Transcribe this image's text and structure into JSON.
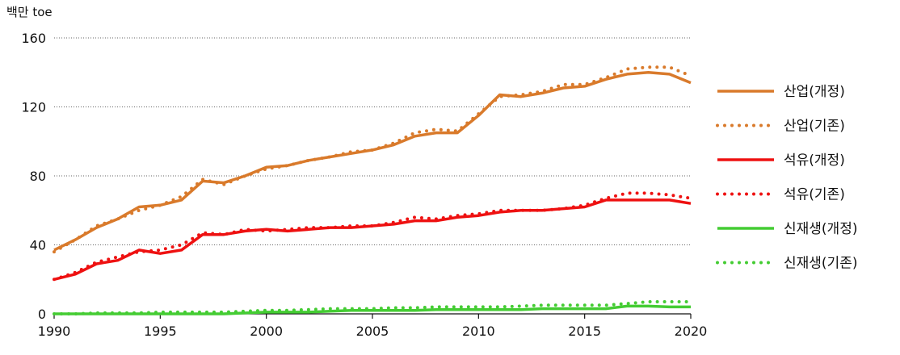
{
  "chart_data": {
    "type": "line",
    "ylabel": "백만 toe",
    "ylim": [
      0,
      160
    ],
    "xlim": [
      1990,
      2020
    ],
    "yticks": [
      "0",
      "40",
      "80",
      "120",
      "160"
    ],
    "xticks": [
      "1990",
      "1995",
      "2000",
      "2005",
      "2010",
      "2015",
      "2020"
    ],
    "grid": "horizontal dotted",
    "legend_position": "right",
    "x": [
      1990,
      1991,
      1992,
      1993,
      1994,
      1995,
      1996,
      1997,
      1998,
      1999,
      2000,
      2001,
      2002,
      2003,
      2004,
      2005,
      2006,
      2007,
      2008,
      2009,
      2010,
      2011,
      2012,
      2013,
      2014,
      2015,
      2016,
      2017,
      2018,
      2019,
      2020
    ],
    "series": [
      {
        "name": "산업(개정)",
        "color": "#d97a2b",
        "style": "solid",
        "values": [
          37,
          43,
          50,
          55,
          62,
          63,
          66,
          77,
          76,
          80,
          85,
          86,
          89,
          91,
          93,
          95,
          98,
          103,
          105,
          105,
          115,
          127,
          126,
          128,
          131,
          132,
          136,
          139,
          140,
          139,
          134
        ]
      },
      {
        "name": "산업(기존)",
        "color": "#d97a2b",
        "style": "dotted",
        "values": [
          36,
          43,
          51,
          55,
          60,
          63,
          68,
          78,
          75,
          80,
          84,
          86,
          89,
          91,
          94,
          95,
          99,
          105,
          107,
          106,
          116,
          126,
          127,
          129,
          133,
          133,
          137,
          142,
          143,
          143,
          138
        ]
      },
      {
        "name": "석유(개정)",
        "color": "#ee1111",
        "style": "solid",
        "values": [
          20,
          23,
          29,
          31,
          37,
          35,
          37,
          46,
          46,
          48,
          49,
          48,
          49,
          50,
          50,
          51,
          52,
          54,
          54,
          56,
          57,
          59,
          60,
          60,
          61,
          62,
          66,
          66,
          66,
          66,
          64
        ]
      },
      {
        "name": "석유(기존)",
        "color": "#ee1111",
        "style": "dotted",
        "values": [
          20,
          24,
          30,
          33,
          36,
          37,
          40,
          47,
          46,
          49,
          48,
          49,
          50,
          50,
          51,
          51,
          53,
          56,
          55,
          57,
          58,
          60,
          60,
          60,
          61,
          63,
          67,
          70,
          70,
          69,
          67
        ]
      },
      {
        "name": "신재생(개정)",
        "color": "#44cc33",
        "style": "solid",
        "values": [
          0,
          0,
          0,
          0,
          0,
          0,
          0,
          0,
          0,
          0.5,
          1,
          1,
          1,
          1.5,
          2,
          2,
          2,
          2,
          2.5,
          2.5,
          2.5,
          2.5,
          2.5,
          3,
          3,
          3,
          3,
          4.5,
          4.5,
          4,
          4
        ]
      },
      {
        "name": "신재생(기존)",
        "color": "#44cc33",
        "style": "dotted",
        "values": [
          0,
          0,
          0.5,
          0.5,
          0.5,
          1,
          1,
          1,
          1,
          1.5,
          2,
          2,
          2.5,
          3,
          3,
          3,
          3.5,
          3.5,
          4,
          4,
          4,
          4,
          4.5,
          5,
          5,
          5,
          5,
          6,
          7,
          7,
          7
        ]
      }
    ]
  }
}
